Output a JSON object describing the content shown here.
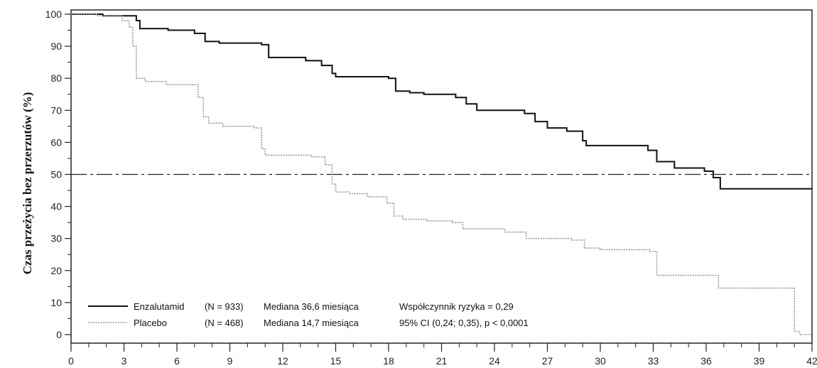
{
  "chart_data": {
    "type": "line",
    "title": "",
    "xlabel": "",
    "ylabel": "Czas przeżycia bez przerzutów (%)",
    "xlim": [
      0,
      42
    ],
    "ylim": [
      0,
      100
    ],
    "x_ticks": [
      0,
      3,
      6,
      9,
      12,
      15,
      18,
      21,
      24,
      27,
      30,
      33,
      36,
      39,
      42
    ],
    "y_ticks": [
      0,
      10,
      20,
      30,
      40,
      50,
      60,
      70,
      80,
      90,
      100
    ],
    "grid": false,
    "reference_line": {
      "y": 50,
      "style": "dash-dot"
    },
    "legend_position": "bottom-left",
    "series": [
      {
        "name": "Enzalutamid",
        "color": "#111111",
        "style": "solid",
        "x": [
          0,
          1.8,
          3.7,
          3.9,
          5.5,
          7.0,
          7.6,
          8.4,
          10.8,
          11.2,
          13.3,
          14.2,
          14.8,
          15.0,
          18.0,
          18.4,
          19.2,
          20.0,
          21.8,
          22.4,
          23.0,
          25.7,
          26.3,
          27.0,
          28.1,
          29.0,
          29.2,
          32.7,
          33.2,
          34.2,
          35.9,
          36.4,
          36.8,
          42.0
        ],
        "y": [
          100,
          99.5,
          98,
          95.5,
          95,
          94,
          91.5,
          91,
          90.5,
          86.5,
          85.5,
          84,
          81.5,
          80.5,
          80,
          76,
          75.5,
          75,
          74,
          72,
          70,
          69,
          66.5,
          64.5,
          63.5,
          60.5,
          59,
          57.5,
          54,
          52,
          51,
          49,
          45.5,
          45.5
        ]
      },
      {
        "name": "Placebo",
        "color": "#9a9a9a",
        "style": "dotted",
        "x": [
          0,
          1.5,
          2.9,
          3.3,
          3.5,
          3.7,
          4.2,
          5.4,
          6.8,
          7.2,
          7.5,
          7.8,
          8.6,
          10.4,
          10.8,
          11.0,
          13.6,
          14.4,
          14.8,
          15.0,
          15.8,
          16.8,
          17.9,
          18.3,
          18.8,
          20.2,
          21.6,
          22.2,
          24.6,
          25.8,
          28.4,
          29.1,
          30.0,
          32.8,
          33.2,
          36.7,
          40.6,
          41.0,
          41.3,
          42.0
        ],
        "y": [
          100,
          99.5,
          98,
          96,
          90,
          80,
          79,
          78,
          78,
          74,
          68,
          66,
          65,
          64.5,
          58,
          56,
          55.5,
          53,
          47,
          44.5,
          44,
          43,
          41,
          37,
          36,
          35.5,
          35,
          33,
          32,
          30,
          29.5,
          27,
          26.5,
          26,
          18.5,
          14.5,
          14.5,
          1,
          0,
          0
        ]
      }
    ],
    "legend": [
      {
        "series": "Enzalutamid",
        "label": "Enzalutamid",
        "n": "(N = 933)",
        "median": "Mediana 36,6 miesiąca",
        "stat": "Współczynnik ryzyka = 0,29"
      },
      {
        "series": "Placebo",
        "label": "Placebo",
        "n": "(N = 468)",
        "median": "Mediana 14,7 miesiąca",
        "stat": "95% CI (0,24; 0,35), p < 0,0001"
      }
    ]
  }
}
